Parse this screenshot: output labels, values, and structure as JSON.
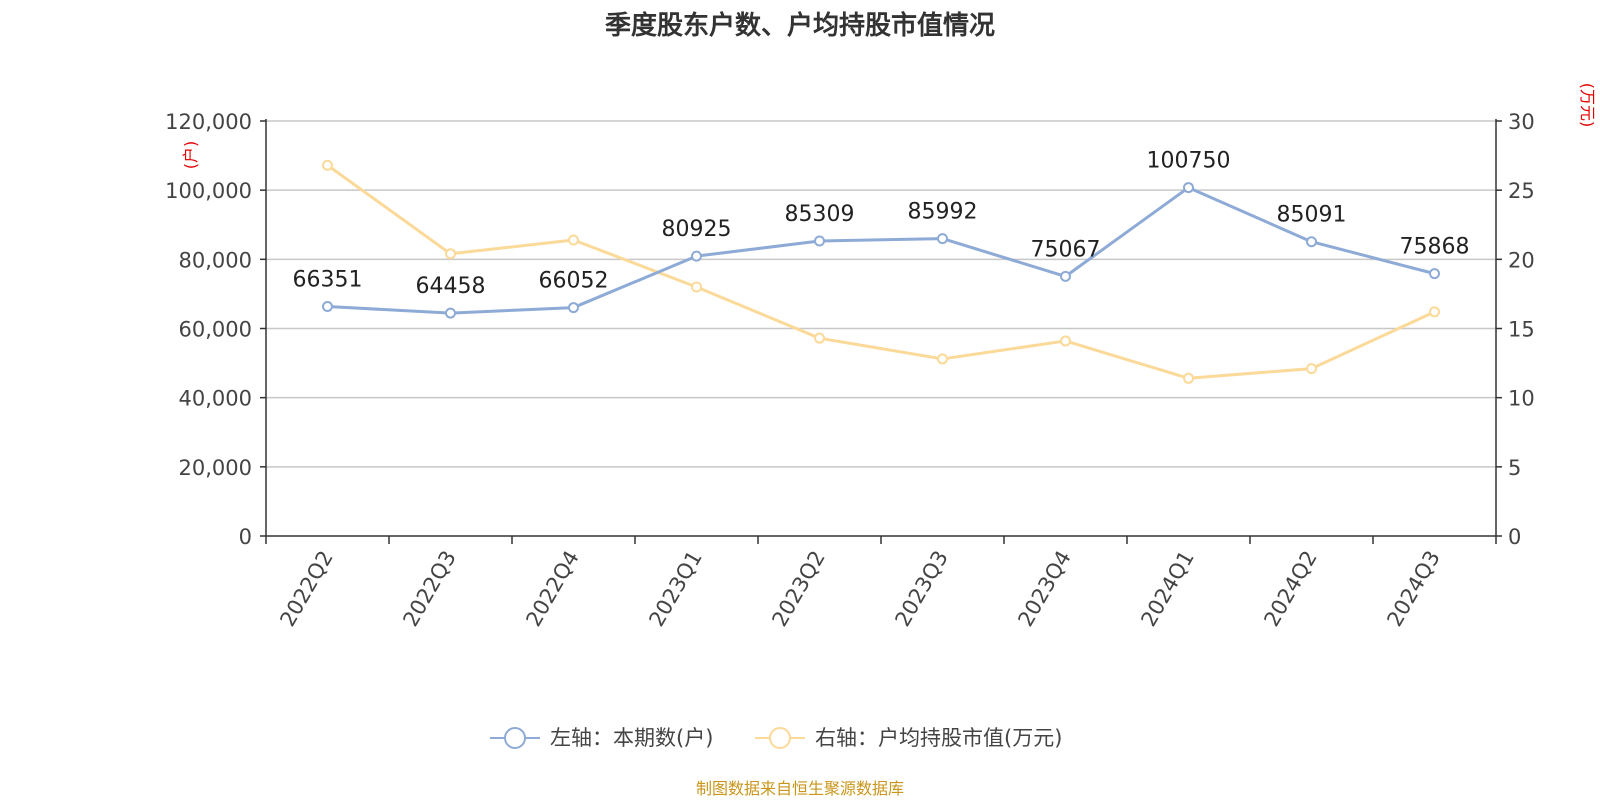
{
  "chart_data": {
    "type": "line",
    "title": "季度股东户数、户均持股市值情况",
    "categories": [
      "2022Q2",
      "2022Q3",
      "2022Q4",
      "2023Q1",
      "2023Q2",
      "2023Q3",
      "2023Q4",
      "2024Q1",
      "2024Q2",
      "2024Q3"
    ],
    "left_axis": {
      "unit": "(户)",
      "ylim": [
        0,
        120000
      ],
      "ticks": [
        "0",
        "20,000",
        "40,000",
        "60,000",
        "80,000",
        "100,000",
        "120,000"
      ]
    },
    "right_axis": {
      "unit": "(万元)",
      "ylim": [
        0,
        30
      ],
      "ticks": [
        "0",
        "5",
        "10",
        "15",
        "20",
        "25",
        "30"
      ]
    },
    "grid": true,
    "legend_position": "bottom-center",
    "series": [
      {
        "name": "左轴：本期数(户)",
        "axis": "left",
        "color": "#8eaad6",
        "values": [
          66351,
          64458,
          66052,
          80925,
          85309,
          85992,
          75067,
          100750,
          85091,
          75868
        ],
        "labels": [
          "66351",
          "64458",
          "66052",
          "80925",
          "85309",
          "85992",
          "75067",
          "100750",
          "85091",
          "75868"
        ]
      },
      {
        "name": "右轴：户均持股市值(万元)",
        "axis": "right",
        "color": "#fbd999",
        "values": [
          26.8,
          20.4,
          21.4,
          18.0,
          14.3,
          12.8,
          14.1,
          11.4,
          12.1,
          16.2
        ]
      }
    ]
  },
  "source": "制图数据来自恒生聚源数据库"
}
